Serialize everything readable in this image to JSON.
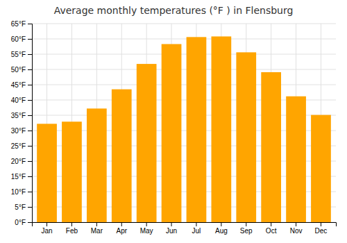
{
  "chart_data": {
    "type": "bar",
    "title": "Average monthly temperatures (°F ) in Flensburg",
    "categories": [
      "Jan",
      "Feb",
      "Mar",
      "Apr",
      "May",
      "Jun",
      "Jul",
      "Aug",
      "Sep",
      "Oct",
      "Nov",
      "Dec"
    ],
    "values": [
      32.2,
      32.9,
      37.2,
      43.5,
      51.8,
      58.3,
      60.6,
      60.8,
      55.6,
      49.1,
      41.2,
      35.1
    ],
    "color": "#FFA500",
    "ylim": [
      0,
      65
    ],
    "yticks": [
      {
        "value": 0,
        "label": "0°F"
      },
      {
        "value": 5,
        "label": "5°F"
      },
      {
        "value": 10,
        "label": "10°F"
      },
      {
        "value": 15,
        "label": "15°F"
      },
      {
        "value": 20,
        "label": "20°F"
      },
      {
        "value": 25,
        "label": "25°F"
      },
      {
        "value": 30,
        "label": "30°F"
      },
      {
        "value": 35,
        "label": "35°F"
      },
      {
        "value": 40,
        "label": "40°F"
      },
      {
        "value": 45,
        "label": "45°F"
      },
      {
        "value": 50,
        "label": "50°F"
      },
      {
        "value": 55,
        "label": "55°F"
      },
      {
        "value": 60,
        "label": "60°F"
      },
      {
        "value": 65,
        "label": "65°F"
      }
    ],
    "grid": true
  }
}
